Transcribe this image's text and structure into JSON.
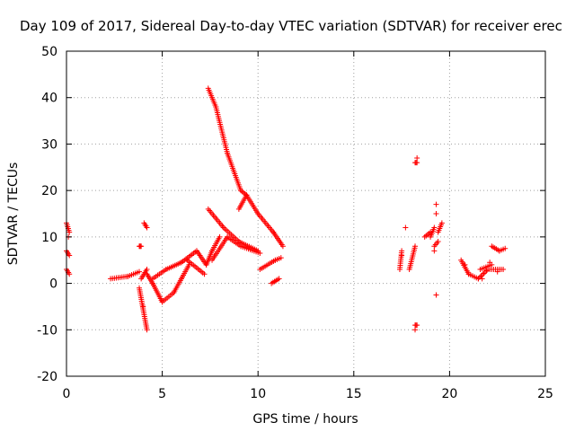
{
  "chart_data": {
    "type": "scatter",
    "title": "Day 109 of 2017, Sidereal Day-to-day VTEC variation (SDTVAR) for receiver erec",
    "xlabel": "GPS time / hours",
    "ylabel": "SDTVAR / TECUs",
    "xlim": [
      0,
      25
    ],
    "ylim": [
      -20,
      50
    ],
    "xticks": [
      0,
      5,
      10,
      15,
      20,
      25
    ],
    "yticks": [
      -20,
      -10,
      0,
      10,
      20,
      30,
      40,
      50
    ],
    "grid": true,
    "marker": "plus",
    "color": "#ff0000",
    "series": [
      {
        "name": "SDTVAR",
        "x": [],
        "y": []
      }
    ],
    "segments": [
      [
        0.0,
        13,
        0.15,
        11
      ],
      [
        0.0,
        7,
        0.15,
        6
      ],
      [
        0.0,
        3,
        0.15,
        2
      ],
      [
        2.3,
        1,
        3.2,
        1.5
      ],
      [
        3.2,
        1.5,
        3.8,
        2.5
      ],
      [
        3.9,
        1,
        4.2,
        3
      ],
      [
        3.8,
        -1,
        4.2,
        -10
      ],
      [
        3.8,
        8,
        3.9,
        8
      ],
      [
        4.05,
        13,
        4.2,
        12
      ],
      [
        4.2,
        2,
        4.5,
        0
      ],
      [
        4.5,
        0,
        5.0,
        -4
      ],
      [
        5.0,
        -4,
        5.6,
        -2
      ],
      [
        5.6,
        -2,
        6.0,
        1
      ],
      [
        6.0,
        1,
        6.4,
        4
      ],
      [
        4.5,
        1,
        5.2,
        3
      ],
      [
        5.2,
        3,
        6.0,
        4.5
      ],
      [
        6.0,
        4.5,
        6.8,
        7
      ],
      [
        6.8,
        7,
        7.3,
        4
      ],
      [
        7.3,
        4,
        7.6,
        7
      ],
      [
        6.3,
        5,
        7.2,
        2
      ],
      [
        7.6,
        7,
        8.0,
        10
      ],
      [
        7.4,
        42,
        7.8,
        38
      ],
      [
        7.8,
        38,
        8.4,
        28
      ],
      [
        8.4,
        28,
        9.1,
        20
      ],
      [
        9.1,
        20,
        9.4,
        19
      ],
      [
        9.4,
        19,
        10.0,
        15
      ],
      [
        10.0,
        15,
        10.8,
        11
      ],
      [
        10.8,
        11,
        11.3,
        8
      ],
      [
        7.4,
        16,
        8.2,
        12
      ],
      [
        8.2,
        12,
        9.0,
        9
      ],
      [
        9.0,
        9,
        10.0,
        7
      ],
      [
        7.6,
        5,
        8.4,
        10
      ],
      [
        8.4,
        10,
        9.1,
        8
      ],
      [
        9.1,
        8,
        10.1,
        6.5
      ],
      [
        9.0,
        16,
        9.4,
        19
      ],
      [
        10.1,
        3,
        10.9,
        5
      ],
      [
        10.9,
        5,
        11.2,
        5.5
      ],
      [
        10.7,
        0,
        11.1,
        1
      ],
      [
        17.4,
        3,
        17.5,
        7
      ],
      [
        17.9,
        3,
        18.2,
        8
      ],
      [
        18.2,
        26,
        18.3,
        26
      ],
      [
        18.2,
        -9,
        18.3,
        -9
      ],
      [
        18.7,
        10,
        19.0,
        11
      ],
      [
        19.0,
        10,
        19.2,
        12
      ],
      [
        19.2,
        8,
        19.4,
        9
      ],
      [
        19.4,
        11,
        19.6,
        13
      ],
      [
        20.6,
        5,
        21.0,
        2
      ],
      [
        21.0,
        2,
        21.5,
        1
      ],
      [
        21.5,
        1,
        22.0,
        3
      ],
      [
        22.0,
        3,
        22.8,
        3
      ],
      [
        21.6,
        3,
        22.2,
        4
      ],
      [
        22.2,
        8,
        22.6,
        7
      ],
      [
        22.6,
        7,
        22.9,
        7.5
      ]
    ],
    "isolated_points": [
      [
        17.7,
        12
      ],
      [
        19.3,
        17
      ],
      [
        19.3,
        15
      ],
      [
        19.3,
        -2.5
      ],
      [
        19.2,
        7
      ],
      [
        18.3,
        27
      ],
      [
        18.2,
        -10
      ],
      [
        17.5,
        6
      ],
      [
        3.85,
        8
      ],
      [
        4.0,
        -5
      ],
      [
        0.1,
        10
      ],
      [
        22.1,
        4.5
      ],
      [
        22.5,
        2.5
      ],
      [
        21.7,
        1
      ],
      [
        20.8,
        4
      ]
    ]
  }
}
